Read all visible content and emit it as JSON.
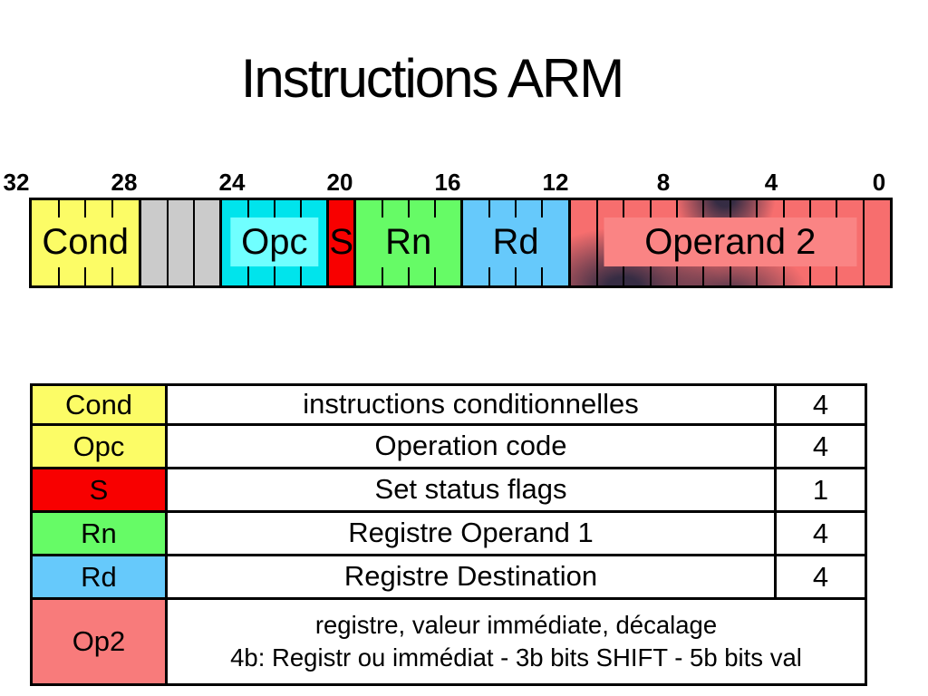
{
  "title": "Instructions ARM",
  "colors": {
    "yellow": "#FCFC66",
    "gray": "#CBCBCB",
    "cyan": "#00E4EC",
    "cyan_light": "#70FFFF",
    "red": "#F80000",
    "green": "#66FB66",
    "blue": "#66C9FB",
    "salmon": "#F76E6E",
    "salmon_light": "#FA8484",
    "table_salmon": "#F87B7B",
    "smoke_dark": "#2F2A42",
    "border": "#000000",
    "background": "#FFFFFF"
  },
  "diagram": {
    "scale_labels": [
      "32",
      "28",
      "24",
      "20",
      "16",
      "12",
      "8",
      "4",
      "0"
    ],
    "sections": [
      {
        "name": "cond",
        "label": "Cond",
        "bits": 4,
        "color": "#FCFC66"
      },
      {
        "name": "unused",
        "label": "",
        "bits": 3,
        "color": "#CBCBCB"
      },
      {
        "name": "opc",
        "label": "Opc",
        "bits": 4,
        "color": "#00E4EC",
        "label_bg": "#70FFFF"
      },
      {
        "name": "s",
        "label": "S",
        "bits": 1,
        "color": "#F80000"
      },
      {
        "name": "rn",
        "label": "Rn",
        "bits": 4,
        "color": "#66FB66"
      },
      {
        "name": "rd",
        "label": "Rd",
        "bits": 4,
        "color": "#66C9FB"
      },
      {
        "name": "op2",
        "label": "Operand 2",
        "bits": 12,
        "color": "#F76E6E",
        "label_bg": "#FA8484",
        "smoke": true,
        "pad": 45
      }
    ]
  },
  "table": {
    "rows": [
      {
        "label": "Cond",
        "color": "#FCFC66",
        "desc": "instructions conditionnelles",
        "count": "4"
      },
      {
        "label": "Opc",
        "color": "#FCFC66",
        "desc": "Operation code",
        "count": "4"
      },
      {
        "label": "S",
        "color": "#F80000",
        "desc": "Set status flags",
        "count": "1"
      },
      {
        "label": "Rn",
        "color": "#66FB66",
        "desc": "Registre Operand 1",
        "count": "4"
      },
      {
        "label": "Rd",
        "color": "#66C9FB",
        "desc": "Registre Destination",
        "count": "4"
      },
      {
        "label": "Op2",
        "color": "#F87B7B",
        "desc": "registre, valeur immédiate, décalage",
        "desc2": "4b: Registr ou immédiat - 3b bits SHIFT - 5b bits val",
        "count": null,
        "tall": true
      }
    ]
  }
}
